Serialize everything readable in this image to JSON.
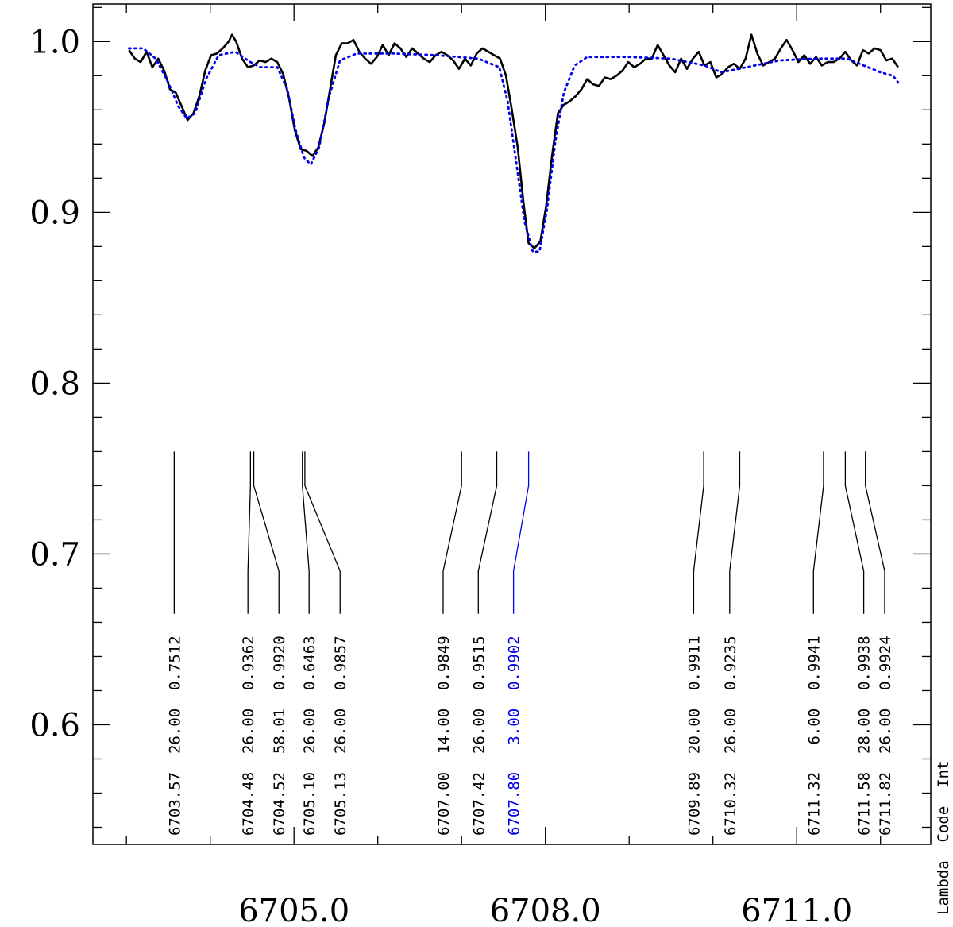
{
  "chart_data": {
    "type": "line",
    "title": "",
    "xlabel": "",
    "ylabel": "",
    "xlim": [
      6702.6,
      6712.6
    ],
    "ylim": [
      0.53,
      1.022
    ],
    "x_ticks": [
      6705.0,
      6708.0,
      6711.0
    ],
    "x_tick_labels": [
      "6705.0",
      "6708.0",
      "6711.0"
    ],
    "y_ticks": [
      0.6,
      0.7,
      0.8,
      0.9,
      1.0
    ],
    "y_tick_labels": [
      "0.6",
      "0.7",
      "0.8",
      "0.9",
      "1.0"
    ],
    "grid": false,
    "series": [
      {
        "style": "solid",
        "color": "#000000",
        "points": [
          [
            6703.03,
            0.995
          ],
          [
            6703.1,
            0.99
          ],
          [
            6703.17,
            0.988
          ],
          [
            6703.24,
            0.994
          ],
          [
            6703.31,
            0.985
          ],
          [
            6703.38,
            0.99
          ],
          [
            6703.45,
            0.983
          ],
          [
            6703.52,
            0.972
          ],
          [
            6703.59,
            0.97
          ],
          [
            6703.66,
            0.962
          ],
          [
            6703.73,
            0.954
          ],
          [
            6703.8,
            0.958
          ],
          [
            6703.87,
            0.968
          ],
          [
            6703.94,
            0.983
          ],
          [
            6704.01,
            0.992
          ],
          [
            6704.08,
            0.993
          ],
          [
            6704.15,
            0.996
          ],
          [
            6704.22,
            1.0
          ],
          [
            6704.26,
            1.004
          ],
          [
            6704.31,
            1.0
          ],
          [
            6704.38,
            0.99
          ],
          [
            6704.45,
            0.985
          ],
          [
            6704.52,
            0.986
          ],
          [
            6704.59,
            0.989
          ],
          [
            6704.66,
            0.988
          ],
          [
            6704.73,
            0.99
          ],
          [
            6704.8,
            0.988
          ],
          [
            6704.87,
            0.981
          ],
          [
            6704.94,
            0.967
          ],
          [
            6705.01,
            0.948
          ],
          [
            6705.08,
            0.937
          ],
          [
            6705.15,
            0.936
          ],
          [
            6705.22,
            0.933
          ],
          [
            6705.29,
            0.938
          ],
          [
            6705.36,
            0.952
          ],
          [
            6705.43,
            0.972
          ],
          [
            6705.5,
            0.992
          ],
          [
            6705.57,
            0.999
          ],
          [
            6705.64,
            0.999
          ],
          [
            6705.71,
            1.001
          ],
          [
            6705.78,
            0.994
          ],
          [
            6705.85,
            0.99
          ],
          [
            6705.92,
            0.987
          ],
          [
            6705.99,
            0.991
          ],
          [
            6706.06,
            0.998
          ],
          [
            6706.13,
            0.992
          ],
          [
            6706.2,
            0.999
          ],
          [
            6706.27,
            0.996
          ],
          [
            6706.34,
            0.991
          ],
          [
            6706.41,
            0.996
          ],
          [
            6706.48,
            0.993
          ],
          [
            6706.55,
            0.99
          ],
          [
            6706.62,
            0.988
          ],
          [
            6706.69,
            0.992
          ],
          [
            6706.76,
            0.994
          ],
          [
            6706.83,
            0.992
          ],
          [
            6706.9,
            0.989
          ],
          [
            6706.97,
            0.984
          ],
          [
            6707.04,
            0.99
          ],
          [
            6707.11,
            0.986
          ],
          [
            6707.18,
            0.993
          ],
          [
            6707.25,
            0.996
          ],
          [
            6707.32,
            0.994
          ],
          [
            6707.39,
            0.992
          ],
          [
            6707.46,
            0.99
          ],
          [
            6707.53,
            0.98
          ],
          [
            6707.6,
            0.96
          ],
          [
            6707.67,
            0.938
          ],
          [
            6707.74,
            0.905
          ],
          [
            6707.8,
            0.882
          ],
          [
            6707.87,
            0.879
          ],
          [
            6707.94,
            0.883
          ],
          [
            6708.01,
            0.904
          ],
          [
            6708.08,
            0.933
          ],
          [
            6708.15,
            0.958
          ],
          [
            6708.22,
            0.963
          ],
          [
            6708.29,
            0.965
          ],
          [
            6708.36,
            0.968
          ],
          [
            6708.43,
            0.972
          ],
          [
            6708.5,
            0.978
          ],
          [
            6708.57,
            0.975
          ],
          [
            6708.64,
            0.974
          ],
          [
            6708.71,
            0.979
          ],
          [
            6708.78,
            0.978
          ],
          [
            6708.85,
            0.98
          ],
          [
            6708.92,
            0.983
          ],
          [
            6708.99,
            0.988
          ],
          [
            6709.06,
            0.985
          ],
          [
            6709.13,
            0.987
          ],
          [
            6709.2,
            0.99
          ],
          [
            6709.27,
            0.99
          ],
          [
            6709.34,
            0.998
          ],
          [
            6709.41,
            0.992
          ],
          [
            6709.48,
            0.986
          ],
          [
            6709.55,
            0.982
          ],
          [
            6709.62,
            0.99
          ],
          [
            6709.69,
            0.984
          ],
          [
            6709.76,
            0.99
          ],
          [
            6709.83,
            0.994
          ],
          [
            6709.9,
            0.986
          ],
          [
            6709.97,
            0.988
          ],
          [
            6710.04,
            0.979
          ],
          [
            6710.11,
            0.981
          ],
          [
            6710.18,
            0.985
          ],
          [
            6710.25,
            0.987
          ],
          [
            6710.32,
            0.984
          ],
          [
            6710.39,
            0.99
          ],
          [
            6710.46,
            1.004
          ],
          [
            6710.53,
            0.993
          ],
          [
            6710.6,
            0.986
          ],
          [
            6710.67,
            0.988
          ],
          [
            6710.74,
            0.99
          ],
          [
            6710.81,
            0.996
          ],
          [
            6710.88,
            1.001
          ],
          [
            6710.95,
            0.995
          ],
          [
            6711.02,
            0.988
          ],
          [
            6711.09,
            0.992
          ],
          [
            6711.16,
            0.987
          ],
          [
            6711.23,
            0.991
          ],
          [
            6711.3,
            0.986
          ],
          [
            6711.37,
            0.988
          ],
          [
            6711.44,
            0.988
          ],
          [
            6711.51,
            0.99
          ],
          [
            6711.58,
            0.994
          ],
          [
            6711.65,
            0.989
          ],
          [
            6711.72,
            0.986
          ],
          [
            6711.79,
            0.995
          ],
          [
            6711.86,
            0.993
          ],
          [
            6711.93,
            0.996
          ],
          [
            6712.0,
            0.995
          ],
          [
            6712.07,
            0.989
          ],
          [
            6712.14,
            0.99
          ],
          [
            6712.21,
            0.985
          ]
        ]
      },
      {
        "style": "dotted",
        "color": "#0000ee",
        "points": [
          [
            6703.03,
            0.996
          ],
          [
            6703.2,
            0.996
          ],
          [
            6703.35,
            0.99
          ],
          [
            6703.5,
            0.976
          ],
          [
            6703.62,
            0.962
          ],
          [
            6703.72,
            0.955
          ],
          [
            6703.82,
            0.958
          ],
          [
            6703.95,
            0.978
          ],
          [
            6704.1,
            0.992
          ],
          [
            6704.3,
            0.994
          ],
          [
            6704.48,
            0.988
          ],
          [
            6704.6,
            0.985
          ],
          [
            6704.8,
            0.985
          ],
          [
            6704.92,
            0.972
          ],
          [
            6705.02,
            0.948
          ],
          [
            6705.12,
            0.932
          ],
          [
            6705.2,
            0.928
          ],
          [
            6705.3,
            0.938
          ],
          [
            6705.42,
            0.968
          ],
          [
            6705.55,
            0.989
          ],
          [
            6705.75,
            0.993
          ],
          [
            6706.2,
            0.993
          ],
          [
            6706.7,
            0.992
          ],
          [
            6707.2,
            0.99
          ],
          [
            6707.45,
            0.985
          ],
          [
            6707.55,
            0.965
          ],
          [
            6707.65,
            0.93
          ],
          [
            6707.75,
            0.895
          ],
          [
            6707.85,
            0.877
          ],
          [
            6707.93,
            0.877
          ],
          [
            6708.02,
            0.902
          ],
          [
            6708.12,
            0.942
          ],
          [
            6708.22,
            0.97
          ],
          [
            6708.35,
            0.986
          ],
          [
            6708.5,
            0.991
          ],
          [
            6709.0,
            0.991
          ],
          [
            6709.5,
            0.99
          ],
          [
            6709.9,
            0.986
          ],
          [
            6710.1,
            0.982
          ],
          [
            6710.4,
            0.985
          ],
          [
            6710.8,
            0.989
          ],
          [
            6711.2,
            0.99
          ],
          [
            6711.6,
            0.99
          ],
          [
            6711.8,
            0.986
          ],
          [
            6712.0,
            0.982
          ],
          [
            6712.15,
            0.98
          ],
          [
            6712.21,
            0.976
          ]
        ]
      }
    ],
    "line_ids": {
      "column_title": "Lambda  Code  Int",
      "lines": [
        {
          "label": "6703.57  26.00  0.7512",
          "x": 6703.57,
          "label_x": 6703.57,
          "color": "#000000"
        },
        {
          "label": "6704.48  26.00  0.9362",
          "x": 6704.48,
          "label_x": 6704.45,
          "color": "#000000"
        },
        {
          "label": "6704.52  58.01  0.9920",
          "x": 6704.52,
          "label_x": 6704.82,
          "color": "#000000"
        },
        {
          "label": "6705.10  26.00  0.6463",
          "x": 6705.1,
          "label_x": 6705.18,
          "color": "#000000"
        },
        {
          "label": "6705.13  26.00  0.9857",
          "x": 6705.13,
          "label_x": 6705.55,
          "color": "#000000"
        },
        {
          "label": "6707.00  14.00  0.9849",
          "x": 6707.0,
          "label_x": 6706.78,
          "color": "#000000"
        },
        {
          "label": "6707.42  26.00  0.9515",
          "x": 6707.42,
          "label_x": 6707.2,
          "color": "#000000"
        },
        {
          "label": "6707.80   3.00  0.9902",
          "x": 6707.8,
          "label_x": 6707.62,
          "color": "#0000ee"
        },
        {
          "label": "6709.89  20.00  0.9911",
          "x": 6709.89,
          "label_x": 6709.77,
          "color": "#000000"
        },
        {
          "label": "6710.32  26.00  0.9235",
          "x": 6710.32,
          "label_x": 6710.2,
          "color": "#000000"
        },
        {
          "label": "6711.32   6.00  0.9941",
          "x": 6711.32,
          "label_x": 6711.2,
          "color": "#000000"
        },
        {
          "label": "6711.58  28.00  0.9938",
          "x": 6711.58,
          "label_x": 6711.8,
          "color": "#000000"
        },
        {
          "label": "6711.82  26.00  0.9924",
          "x": 6711.82,
          "label_x": 6712.05,
          "color": "#000000"
        }
      ]
    }
  }
}
